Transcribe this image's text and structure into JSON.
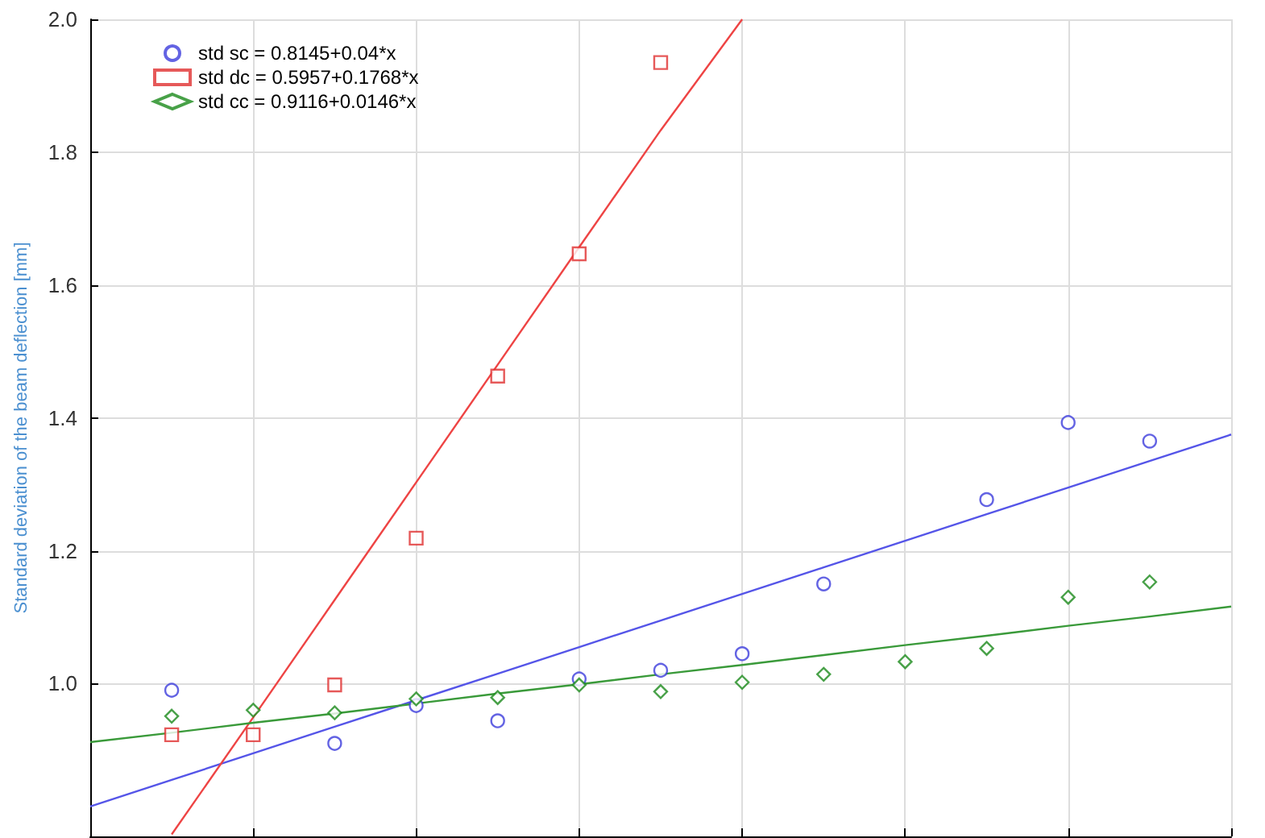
{
  "chart_data": {
    "type": "scatter",
    "ylabel": "Standard deviation of the beam deflection [mm]",
    "categories": [
      null,
      null,
      null,
      null,
      null,
      null,
      null,
      null,
      null,
      null,
      null,
      null,
      null,
      null,
      null
    ],
    "ylim": [
      0.77,
      2.0
    ],
    "yticks": [
      {
        "value": 1,
        "label": "1.0"
      },
      {
        "value": 1.2,
        "label": "1.2"
      },
      {
        "value": 1.4,
        "label": "1.4"
      },
      {
        "value": 1.6,
        "label": "1.6"
      },
      {
        "value": 1.8,
        "label": "1.8"
      },
      {
        "value": 2,
        "label": "2.0"
      }
    ],
    "tick_labels": "y",
    "grid": true,
    "legend": "top left",
    "series": [
      {
        "name": "std sc = 0.8145+0.04*x",
        "marker": "circle",
        "color": "#3c3cdc",
        "values": [
          null,
          0.99,
          null,
          0.91,
          0.967,
          0.944,
          1.007,
          1.02,
          1.045,
          1.15,
          null,
          1.277,
          1.393,
          1.365,
          null
        ]
      },
      {
        "name": "std dc = 0.5957+0.1768*x",
        "marker": "square",
        "color": "#e03030",
        "values": [
          null,
          0.923,
          0.923,
          0.998,
          1.219,
          1.463,
          1.647,
          1.935,
          null,
          null,
          null,
          null,
          null,
          null,
          null
        ]
      },
      {
        "name": "std cc = 0.9116+0.0146*x",
        "marker": "diamond",
        "color": "#1a8a1a",
        "values": [
          null,
          0.951,
          0.96,
          0.956,
          0.977,
          0.979,
          0.998,
          0.988,
          1.002,
          1.014,
          1.033,
          1.053,
          1.13,
          1.153,
          null
        ]
      },
      {
        "type": "line",
        "marker": "none",
        "color": "#5555e8",
        "values": [
          0.815,
          0.855,
          0.895,
          0.935,
          0.975,
          1.015,
          1.055,
          1.095,
          1.135,
          1.175,
          1.215,
          1.255,
          1.295,
          1.335,
          1.375
        ]
      },
      {
        "type": "line",
        "marker": "none",
        "color": "#ee4444",
        "values": [
          null,
          0.773,
          0.949,
          1.126,
          1.303,
          1.48,
          1.657,
          1.833,
          2.0,
          null,
          null,
          null,
          null,
          null,
          null
        ]
      },
      {
        "type": "line",
        "marker": "none",
        "color": "#3a9a3a",
        "values": [
          0.912,
          0.926,
          0.941,
          0.955,
          0.97,
          0.985,
          0.999,
          1.014,
          1.028,
          1.043,
          1.058,
          1.072,
          1.087,
          1.101,
          1.116
        ]
      }
    ]
  }
}
